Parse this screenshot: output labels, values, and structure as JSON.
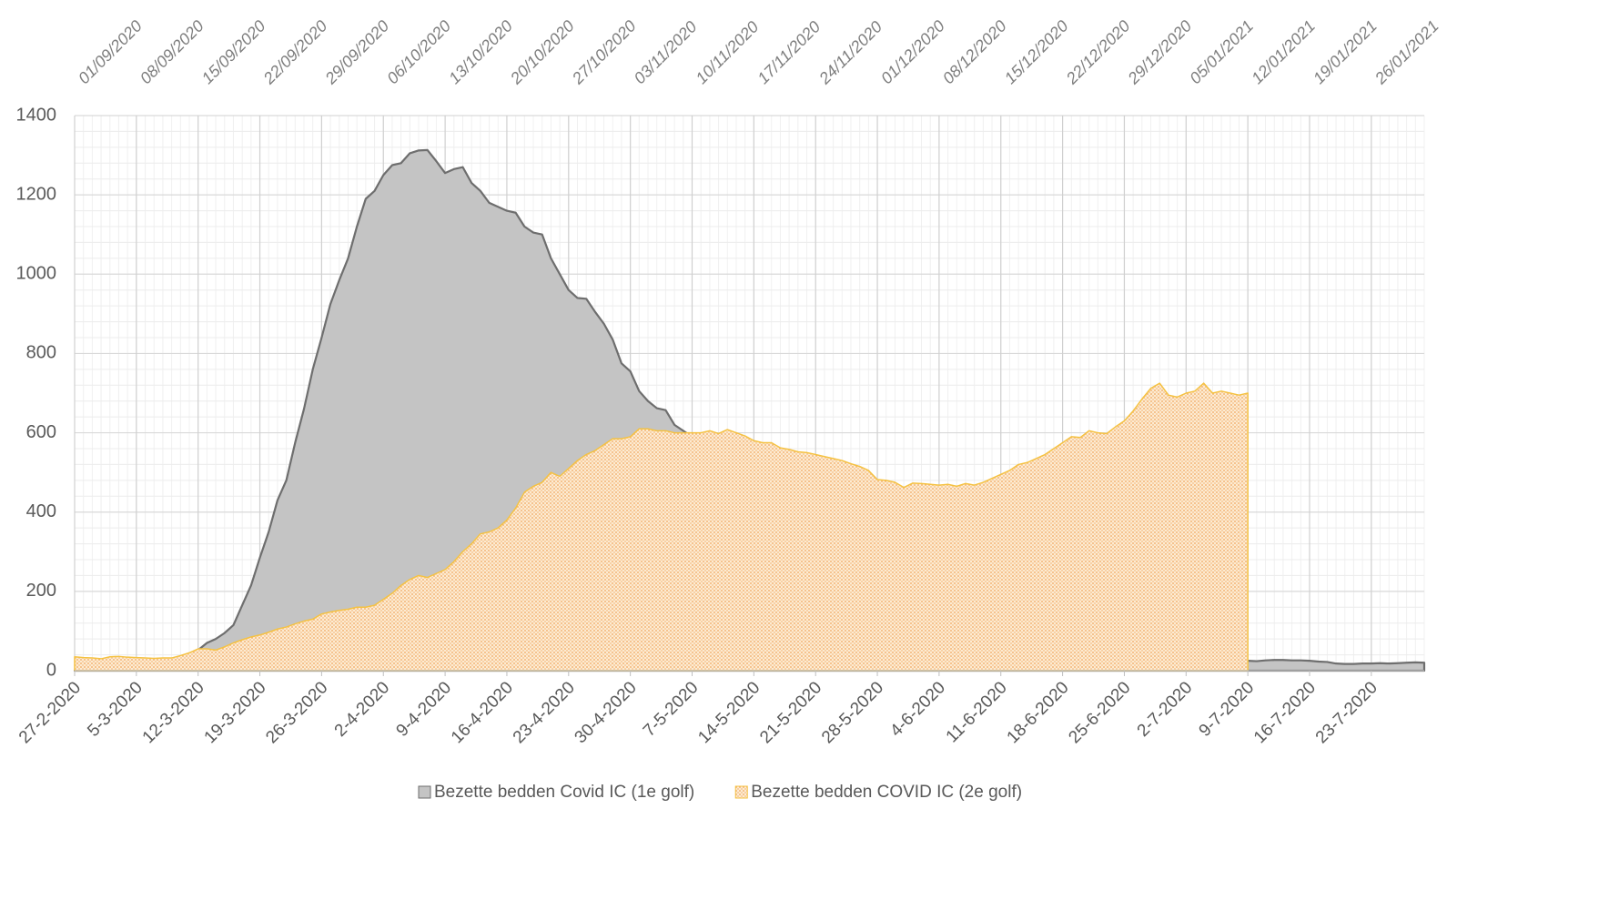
{
  "chart_data": {
    "type": "area",
    "categories": [
      "27-2-2020",
      null,
      null,
      null,
      null,
      null,
      null,
      "5-3-2020",
      null,
      null,
      null,
      null,
      null,
      null,
      "12-3-2020",
      null,
      null,
      null,
      null,
      null,
      null,
      "19-3-2020",
      null,
      null,
      null,
      null,
      null,
      null,
      "26-3-2020",
      null,
      null,
      null,
      null,
      null,
      null,
      "2-4-2020",
      null,
      null,
      null,
      null,
      null,
      null,
      "9-4-2020",
      null,
      null,
      null,
      null,
      null,
      null,
      "16-4-2020",
      null,
      null,
      null,
      null,
      null,
      null,
      "23-4-2020",
      null,
      null,
      null,
      null,
      null,
      null,
      "30-4-2020",
      null,
      null,
      null,
      null,
      null,
      null,
      "7-5-2020",
      null,
      null,
      null,
      null,
      null,
      null,
      "14-5-2020",
      null,
      null,
      null,
      null,
      null,
      null,
      "21-5-2020",
      null,
      null,
      null,
      null,
      null,
      null,
      "28-5-2020",
      null,
      null,
      null,
      null,
      null,
      null,
      "4-6-2020",
      null,
      null,
      null,
      null,
      null,
      null,
      "11-6-2020",
      null,
      null,
      null,
      null,
      null,
      null,
      "18-6-2020",
      null,
      null,
      null,
      null,
      null,
      null,
      "25-6-2020",
      null,
      null,
      null,
      null,
      null,
      null,
      "2-7-2020",
      null,
      null,
      null,
      null,
      null,
      null,
      "9-7-2020",
      null,
      null,
      null,
      null,
      null,
      null,
      "16-7-2020",
      null,
      null,
      null,
      null,
      null,
      null,
      "23-7-2020",
      null,
      null,
      null,
      null,
      null,
      null
    ],
    "x2_categories": [
      "01/09/2020",
      null,
      null,
      null,
      null,
      null,
      null,
      "08/09/2020",
      null,
      null,
      null,
      null,
      null,
      null,
      "15/09/2020",
      null,
      null,
      null,
      null,
      null,
      null,
      "22/09/2020",
      null,
      null,
      null,
      null,
      null,
      null,
      "29/09/2020",
      null,
      null,
      null,
      null,
      null,
      null,
      "06/10/2020",
      null,
      null,
      null,
      null,
      null,
      null,
      "13/10/2020",
      null,
      null,
      null,
      null,
      null,
      null,
      "20/10/2020",
      null,
      null,
      null,
      null,
      null,
      null,
      "27/10/2020",
      null,
      null,
      null,
      null,
      null,
      null,
      "03/11/2020",
      null,
      null,
      null,
      null,
      null,
      null,
      "10/11/2020",
      null,
      null,
      null,
      null,
      null,
      null,
      "17/11/2020",
      null,
      null,
      null,
      null,
      null,
      null,
      "24/11/2020",
      null,
      null,
      null,
      null,
      null,
      null,
      "01/12/2020",
      null,
      null,
      null,
      null,
      null,
      null,
      "08/12/2020",
      null,
      null,
      null,
      null,
      null,
      null,
      "15/12/2020",
      null,
      null,
      null,
      null,
      null,
      null,
      "22/12/2020",
      null,
      null,
      null,
      null,
      null,
      null,
      "29/12/2020",
      null,
      null,
      null,
      null,
      null,
      null,
      "05/01/2021",
      null,
      null,
      null,
      null,
      null,
      null,
      "12/01/2021",
      null,
      null,
      null,
      null,
      null,
      null,
      "19/01/2021",
      null,
      null,
      null,
      null,
      null,
      null,
      "26/01/2021",
      null,
      null,
      null,
      null,
      null,
      null
    ],
    "series": [
      {
        "name": "Bezette bedden Covid IC (1e golf)",
        "color": "#c4c4c4",
        "edge_color": "#6e6e6e",
        "values": [
          0,
          1,
          2,
          3,
          4,
          6,
          8,
          10,
          13,
          18,
          22,
          28,
          33,
          40,
          52,
          70,
          80,
          95,
          115,
          165,
          215,
          285,
          350,
          430,
          480,
          575,
          660,
          760,
          840,
          925,
          985,
          1040,
          1120,
          1190,
          1210,
          1250,
          1275,
          1280,
          1305,
          1312,
          1313,
          1285,
          1255,
          1265,
          1270,
          1230,
          1210,
          1180,
          1170,
          1160,
          1155,
          1120,
          1105,
          1100,
          1040,
          1000,
          960,
          940,
          938,
          905,
          875,
          835,
          775,
          755,
          705,
          680,
          662,
          657,
          620,
          605,
          590,
          575,
          560,
          545,
          530,
          512,
          495,
          478,
          460,
          443,
          425,
          408,
          392,
          375,
          360,
          345,
          330,
          315,
          300,
          287,
          274,
          260,
          248,
          236,
          224,
          213,
          202,
          192,
          182,
          172,
          163,
          154,
          146,
          138,
          130,
          123,
          116,
          110,
          104,
          98,
          92,
          87,
          82,
          77,
          73,
          69,
          65,
          61,
          58,
          55,
          52,
          49,
          46,
          44,
          42,
          40,
          38,
          36,
          34,
          32,
          30,
          28,
          26,
          25,
          24,
          26,
          27,
          27,
          26,
          26,
          25,
          23,
          22,
          18,
          17,
          17,
          18,
          18,
          19,
          18,
          19,
          20,
          21,
          20
        ]
      },
      {
        "name": "Bezette bedden COVID IC (2e golf)",
        "color": "#f2b26b",
        "edge_color": "#f5c242",
        "values": [
          35,
          33,
          32,
          30,
          35,
          36,
          34,
          33,
          32,
          31,
          32,
          32,
          38,
          45,
          55,
          55,
          52,
          60,
          70,
          78,
          85,
          90,
          97,
          105,
          110,
          118,
          125,
          130,
          143,
          148,
          152,
          155,
          160,
          160,
          165,
          180,
          195,
          215,
          230,
          240,
          235,
          245,
          255,
          275,
          300,
          320,
          345,
          350,
          360,
          380,
          410,
          450,
          465,
          475,
          500,
          490,
          510,
          530,
          545,
          555,
          570,
          585,
          585,
          590,
          610,
          610,
          605,
          605,
          600,
          600,
          600,
          600,
          605,
          598,
          608,
          600,
          592,
          580,
          575,
          575,
          562,
          558,
          552,
          550,
          545,
          540,
          535,
          530,
          522,
          515,
          505,
          482,
          480,
          475,
          462,
          473,
          472,
          470,
          468,
          470,
          465,
          472,
          468,
          475,
          485,
          495,
          505,
          520,
          525,
          535,
          545,
          560,
          575,
          590,
          588,
          605,
          600,
          598,
          615,
          630,
          655,
          685,
          712,
          725,
          695,
          690,
          700,
          705,
          725,
          700,
          705,
          700,
          695,
          700,
          null,
          null,
          null,
          null,
          null,
          null,
          null,
          null,
          null,
          null,
          null,
          null,
          null,
          null,
          null,
          null,
          null,
          null,
          null,
          null
        ]
      }
    ],
    "ylim": [
      0,
      1400
    ],
    "yticks": [
      0,
      200,
      400,
      600,
      800,
      1000,
      1200,
      1400
    ],
    "grid": true,
    "legend": "bottom"
  }
}
